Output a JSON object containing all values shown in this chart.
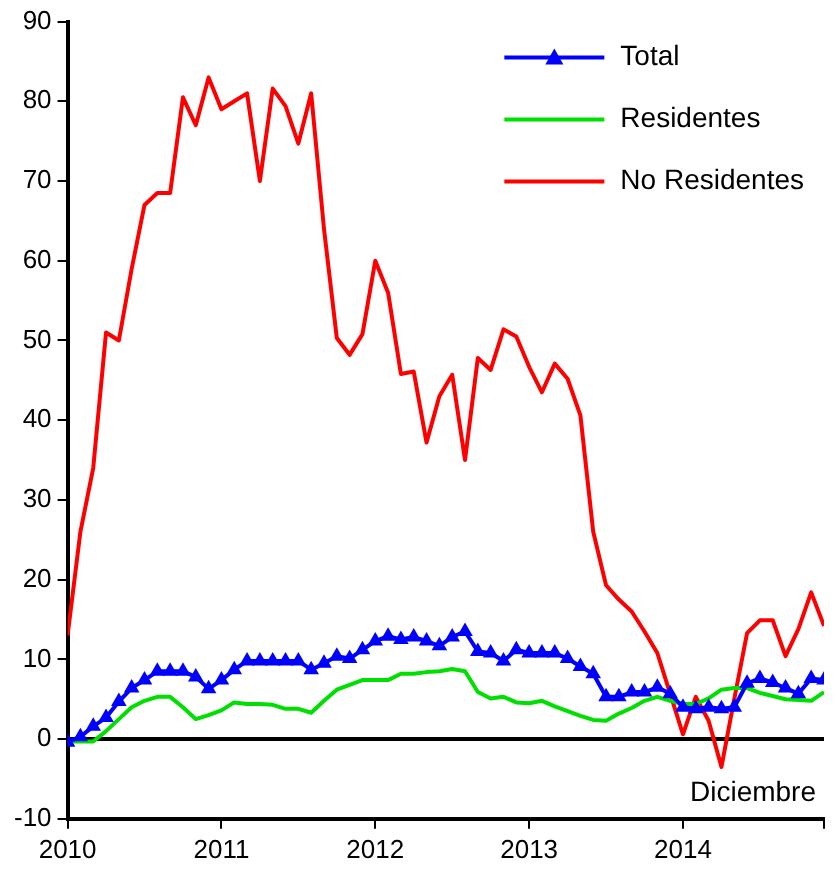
{
  "chart_data": {
    "type": "line",
    "x": [
      "2010-01",
      "2010-02",
      "2010-03",
      "2010-04",
      "2010-05",
      "2010-06",
      "2010-07",
      "2010-08",
      "2010-09",
      "2010-10",
      "2010-11",
      "2010-12",
      "2011-01",
      "2011-02",
      "2011-03",
      "2011-04",
      "2011-05",
      "2011-06",
      "2011-07",
      "2011-08",
      "2011-09",
      "2011-10",
      "2011-11",
      "2011-12",
      "2012-01",
      "2012-02",
      "2012-03",
      "2012-04",
      "2012-05",
      "2012-06",
      "2012-07",
      "2012-08",
      "2012-09",
      "2012-10",
      "2012-11",
      "2012-12",
      "2013-01",
      "2013-02",
      "2013-03",
      "2013-04",
      "2013-05",
      "2013-06",
      "2013-07",
      "2013-08",
      "2013-09",
      "2013-10",
      "2013-11",
      "2013-12",
      "2014-01",
      "2014-02",
      "2014-03",
      "2014-04",
      "2014-05",
      "2014-06",
      "2014-07",
      "2014-08",
      "2014-09",
      "2014-10",
      "2014-11",
      "2014-12"
    ],
    "series": [
      {
        "name": "Total",
        "color": "#0000ff",
        "marker": "triangle",
        "values": [
          -0.4,
          0.3,
          1.6,
          2.7,
          4.7,
          6.4,
          7.4,
          8.5,
          8.5,
          8.5,
          7.8,
          6.3,
          7.4,
          8.7,
          9.8,
          9.8,
          9.8,
          9.8,
          9.8,
          8.7,
          9.5,
          10.4,
          10.1,
          11.2,
          12.3,
          12.9,
          12.5,
          12.8,
          12.3,
          11.7,
          12.8,
          13.5,
          11,
          10.8,
          9.8,
          11.2,
          10.8,
          10.8,
          10.8,
          10.1,
          9.1,
          8.2,
          5.3,
          5.3,
          5.9,
          5.9,
          6.5,
          5.7,
          4,
          3.8,
          4,
          3.8,
          4,
          7,
          7.6,
          7.1,
          6.4,
          5.7,
          7.6,
          7.4
        ]
      },
      {
        "name": "Residentes",
        "color": "#00e000",
        "marker": "none",
        "values": [
          -0.3,
          -0.3,
          -0.3,
          1,
          2.5,
          4,
          4.8,
          5.3,
          5.3,
          4,
          2.5,
          3,
          3.6,
          4.6,
          4.4,
          4.4,
          4.3,
          3.8,
          3.8,
          3.3,
          4.8,
          6.2,
          6.8,
          7.4,
          7.4,
          7.4,
          8.2,
          8.2,
          8.4,
          8.5,
          8.8,
          8.5,
          5.9,
          5.1,
          5.3,
          4.6,
          4.5,
          4.8,
          4.1,
          3.5,
          2.9,
          2.4,
          2.3,
          3.2,
          3.9,
          4.8,
          5.3,
          4.8,
          4.4,
          4.4,
          5.1,
          6.2,
          6.4,
          6.4,
          5.8,
          5.4,
          5,
          4.9,
          4.8,
          5.9
        ]
      },
      {
        "name": "No Residentes",
        "color": "#ff0000",
        "marker": "none",
        "values": [
          13,
          26,
          34,
          51,
          50,
          59,
          67,
          68.5,
          68.5,
          80.5,
          77,
          83,
          79,
          80,
          81,
          70,
          81.6,
          79.4,
          74.7,
          81,
          64,
          50.3,
          48.2,
          50.8,
          60,
          56,
          45.8,
          46.1,
          37.2,
          43,
          45.7,
          35,
          47.8,
          46.3,
          51.4,
          50.5,
          46.7,
          43.5,
          47.1,
          45.2,
          40.6,
          26,
          19.3,
          17.5,
          16,
          13.5,
          10.8,
          5.7,
          0.6,
          5.3,
          2.3,
          -3.5,
          5,
          13.3,
          14.9,
          14.9,
          10.4,
          13.8,
          18.4,
          14.2
        ]
      }
    ],
    "xlim": [
      "2010-01",
      "2014-12"
    ],
    "xticks": [
      {
        "value": "2010",
        "label": "2010"
      },
      {
        "value": "2011",
        "label": "2011"
      },
      {
        "value": "2012",
        "label": "2012"
      },
      {
        "value": "2013",
        "label": "2013"
      },
      {
        "value": "2014",
        "label": "2014"
      },
      {
        "value": "2014-12",
        "label": null
      }
    ],
    "ylim": [
      -10,
      90
    ],
    "yticks": [
      -10,
      0,
      10,
      20,
      30,
      40,
      50,
      60,
      70,
      80,
      90
    ],
    "ref_lines": [
      {
        "axis": "y",
        "value": 0,
        "color": "#000000"
      }
    ],
    "annotations": [
      "Diciembre"
    ],
    "grid": false,
    "legend": "top right",
    "line_style": "solid"
  }
}
